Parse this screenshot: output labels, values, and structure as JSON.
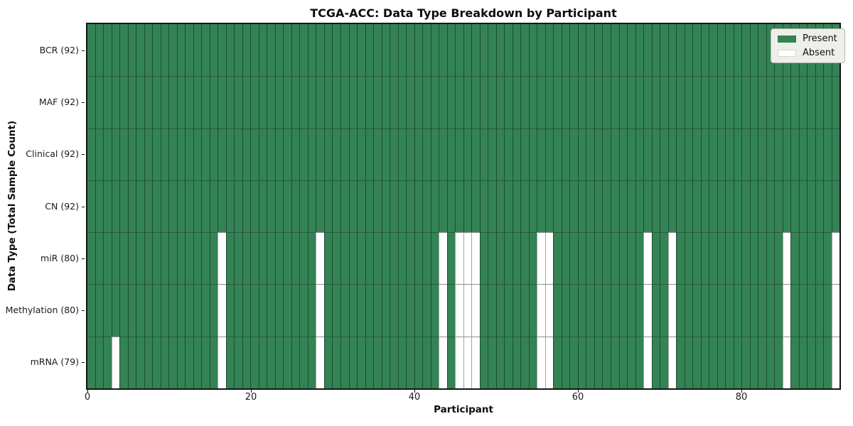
{
  "colors": {
    "present": "#338355",
    "absent": "#ffffff",
    "frame": "#141414",
    "grid_on_green": "#1d4e32",
    "grid_on_white": "#a3a3a3"
  },
  "chart_data": {
    "type": "heatmap",
    "title": "TCGA-ACC: Data Type Breakdown by Participant",
    "xlabel": "Participant",
    "ylabel": "Data Type (Total Sample Count)",
    "n_participants": 92,
    "x_ticks": [
      0,
      20,
      40,
      60,
      80
    ],
    "x_range": [
      0,
      92
    ],
    "grid": true,
    "legend_position": "upper right",
    "rows": [
      {
        "name": "BCR",
        "label": "BCR (92)",
        "count": 92,
        "absent": []
      },
      {
        "name": "MAF",
        "label": "MAF (92)",
        "count": 92,
        "absent": []
      },
      {
        "name": "Clinical",
        "label": "Clinical (92)",
        "count": 92,
        "absent": []
      },
      {
        "name": "CN",
        "label": "CN (92)",
        "count": 92,
        "absent": []
      },
      {
        "name": "miR",
        "label": "miR (80)",
        "count": 80,
        "absent": [
          16,
          28,
          43,
          45,
          46,
          47,
          55,
          56,
          68,
          71,
          85,
          91
        ]
      },
      {
        "name": "Methylation",
        "label": "Methylation (80)",
        "count": 80,
        "absent": [
          16,
          28,
          43,
          45,
          46,
          47,
          55,
          56,
          68,
          71,
          85,
          91
        ]
      },
      {
        "name": "mRNA",
        "label": "mRNA (79)",
        "count": 79,
        "absent": [
          3,
          16,
          28,
          43,
          45,
          46,
          47,
          55,
          56,
          68,
          71,
          85,
          91
        ]
      }
    ],
    "legend": [
      {
        "label": "Present",
        "color": "#338355"
      },
      {
        "label": "Absent",
        "color": "#ffffff"
      }
    ]
  }
}
